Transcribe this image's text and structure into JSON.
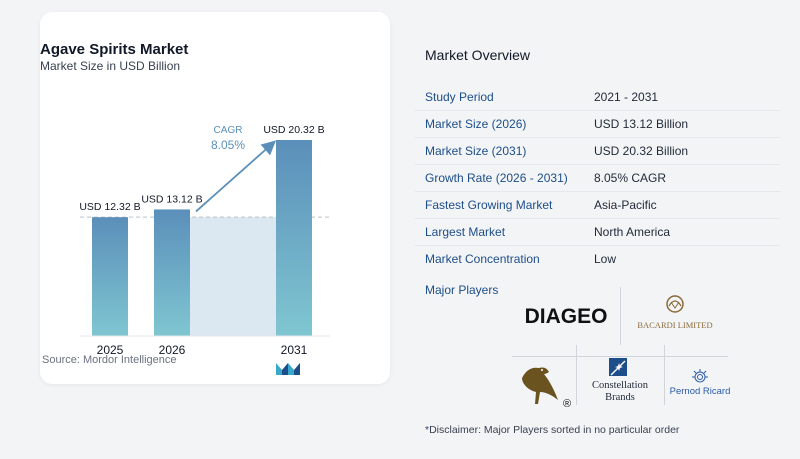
{
  "chart_data": {
    "type": "bar",
    "title": "Agave Spirits Market",
    "subtitle": "Market Size in USD Billion",
    "categories": [
      "2025",
      "2026",
      "2031"
    ],
    "values": [
      12.32,
      13.12,
      20.32
    ],
    "value_labels": [
      "USD 12.32 B",
      "USD 13.12 B",
      "USD 20.32 B"
    ],
    "cagr_label": "CAGR",
    "cagr_value": "8.05%",
    "colors": {
      "bar_top": "#5b8fba",
      "bar_bottom": "#7fc6d1",
      "highlight": "#dbe7f1",
      "arrow": "#5b8fba",
      "cagr_text": "#5b8fba"
    }
  },
  "source": "Source:  Mordor Intelligence",
  "overview": {
    "title": "Market Overview",
    "rows": [
      {
        "label": "Study Period",
        "value": "2021 - 2031"
      },
      {
        "label": "Market Size (2026)",
        "value": "USD 13.12 Billion"
      },
      {
        "label": "Market Size (2031)",
        "value": "USD 20.32 Billion"
      },
      {
        "label": "Growth Rate (2026 - 2031)",
        "value": "8.05% CAGR"
      },
      {
        "label": "Fastest Growing Market",
        "value": "Asia-Pacific"
      },
      {
        "label": "Largest Market",
        "value": "North America"
      },
      {
        "label": "Market Concentration",
        "value": "Low"
      }
    ]
  },
  "major_players": {
    "label": "Major Players",
    "logos": {
      "diageo": "DIAGEO",
      "bacardi": "BACARDI LIMITED",
      "constellation_line1": "Constellation",
      "constellation_line2": "Brands",
      "pernod": "Pernod Ricard",
      "crow_mark": "®"
    }
  },
  "disclaimer": "*Disclaimer: Major Players sorted in no particular order"
}
